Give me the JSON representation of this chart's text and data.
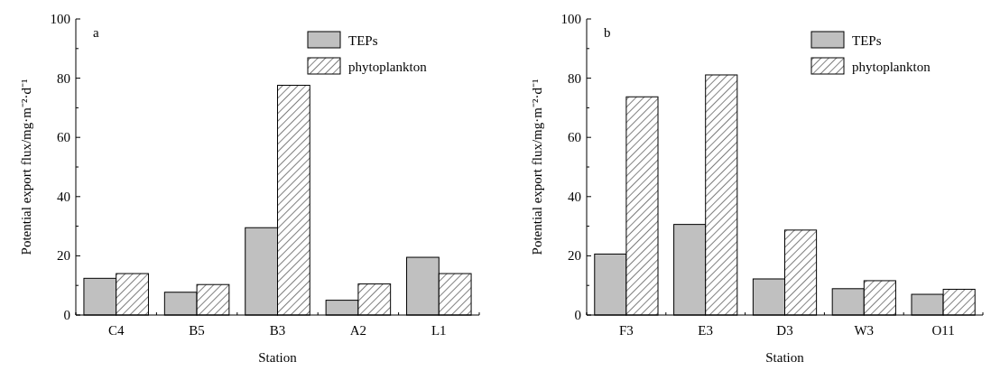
{
  "chart_data": [
    {
      "type": "bar",
      "annotations": [
        "a"
      ],
      "xlabel": "Station",
      "ylabel": "Potential export flux/mg·m⁻²·d⁻¹",
      "categories": [
        "C4",
        "B5",
        "B3",
        "A2",
        "L1"
      ],
      "series": [
        {
          "name": "TEPs",
          "color": "#c0c0c0",
          "values": [
            12.4,
            7.7,
            29.5,
            5.0,
            19.5
          ]
        },
        {
          "name": "phytoplankton",
          "color": "#000000",
          "values": [
            14.0,
            10.3,
            77.6,
            10.5,
            14.0
          ]
        }
      ],
      "ylim": [
        0,
        100
      ],
      "yticks": [
        0,
        {
          "value": 10,
          "label": null
        },
        20,
        {
          "value": 30,
          "label": null
        },
        40,
        {
          "value": 50,
          "label": null
        },
        60,
        {
          "value": 70,
          "label": null
        },
        80,
        {
          "value": 90,
          "label": null
        },
        100
      ],
      "legend": "top right"
    },
    {
      "type": "bar",
      "annotations": [
        "b"
      ],
      "xlabel": "Station",
      "ylabel": "Potential export flux/mg·m⁻²·d⁻¹",
      "categories": [
        "F3",
        "E3",
        "D3",
        "W3",
        "O11"
      ],
      "series": [
        {
          "name": "TEPs",
          "color": "#c0c0c0",
          "values": [
            20.6,
            30.6,
            12.2,
            8.9,
            7.0
          ]
        },
        {
          "name": "phytoplankton",
          "color": "#000000",
          "values": [
            73.7,
            81.1,
            28.7,
            11.6,
            8.7
          ]
        }
      ],
      "ylim": [
        0,
        100
      ],
      "yticks": [
        0,
        {
          "value": 10,
          "label": null
        },
        20,
        {
          "value": 30,
          "label": null
        },
        40,
        {
          "value": 50,
          "label": null
        },
        60,
        {
          "value": 70,
          "label": null
        },
        80,
        {
          "value": 90,
          "label": null
        },
        100
      ],
      "legend": "top right"
    }
  ]
}
